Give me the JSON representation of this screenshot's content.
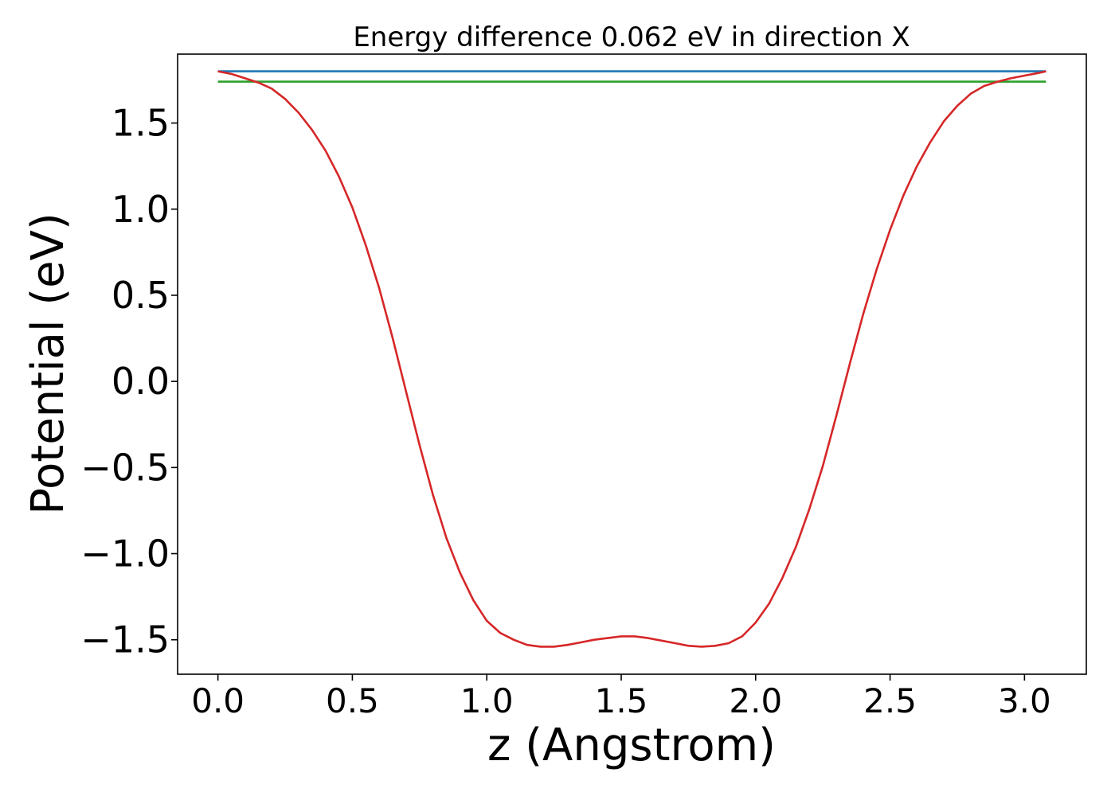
{
  "chart_data": {
    "type": "line",
    "title": "Energy difference 0.062 eV in direction X",
    "xlabel": "z (Angstrom)",
    "ylabel": "Potential (eV)",
    "xlim": [
      -0.15,
      3.23
    ],
    "ylim": [
      -1.7,
      1.9
    ],
    "grid": false,
    "xticks": [
      0.0,
      0.5,
      1.0,
      1.5,
      2.0,
      2.5,
      3.0
    ],
    "xtick_labels": [
      "0.0",
      "0.5",
      "1.0",
      "1.5",
      "2.0",
      "2.5",
      "3.0"
    ],
    "yticks": [
      -1.5,
      -1.0,
      -0.5,
      0.0,
      0.5,
      1.0,
      1.5
    ],
    "ytick_labels": [
      "−1.5",
      "−1.0",
      "−0.5",
      "0.0",
      "0.5",
      "1.0",
      "1.5"
    ],
    "series": [
      {
        "color": "#1f77b4",
        "x": [
          0.0,
          3.08
        ],
        "y": [
          1.8,
          1.8
        ]
      },
      {
        "color": "#2ca02c",
        "x": [
          0.0,
          3.08
        ],
        "y": [
          1.74,
          1.74
        ]
      },
      {
        "color": "#d62728",
        "x": [
          0.0,
          0.05,
          0.1,
          0.15,
          0.2,
          0.25,
          0.3,
          0.35,
          0.4,
          0.45,
          0.5,
          0.55,
          0.6,
          0.65,
          0.7,
          0.75,
          0.8,
          0.85,
          0.9,
          0.95,
          1.0,
          1.05,
          1.1,
          1.15,
          1.2,
          1.25,
          1.3,
          1.35,
          1.4,
          1.45,
          1.5,
          1.55,
          1.6,
          1.65,
          1.7,
          1.75,
          1.8,
          1.85,
          1.9,
          1.95,
          2.0,
          2.05,
          2.1,
          2.15,
          2.2,
          2.25,
          2.3,
          2.35,
          2.4,
          2.45,
          2.5,
          2.55,
          2.6,
          2.65,
          2.7,
          2.75,
          2.8,
          2.85,
          2.9,
          2.95,
          3.0,
          3.05,
          3.08
        ],
        "y": [
          1.8,
          1.785,
          1.76,
          1.735,
          1.7,
          1.64,
          1.56,
          1.46,
          1.34,
          1.19,
          1.01,
          0.79,
          0.54,
          0.25,
          -0.06,
          -0.37,
          -0.66,
          -0.91,
          -1.11,
          -1.27,
          -1.39,
          -1.46,
          -1.5,
          -1.53,
          -1.54,
          -1.54,
          -1.53,
          -1.515,
          -1.5,
          -1.49,
          -1.48,
          -1.48,
          -1.49,
          -1.505,
          -1.52,
          -1.535,
          -1.54,
          -1.535,
          -1.52,
          -1.48,
          -1.4,
          -1.29,
          -1.14,
          -0.96,
          -0.74,
          -0.49,
          -0.2,
          0.1,
          0.39,
          0.65,
          0.88,
          1.08,
          1.25,
          1.39,
          1.51,
          1.6,
          1.67,
          1.715,
          1.74,
          1.76,
          1.775,
          1.79,
          1.8
        ]
      }
    ]
  }
}
